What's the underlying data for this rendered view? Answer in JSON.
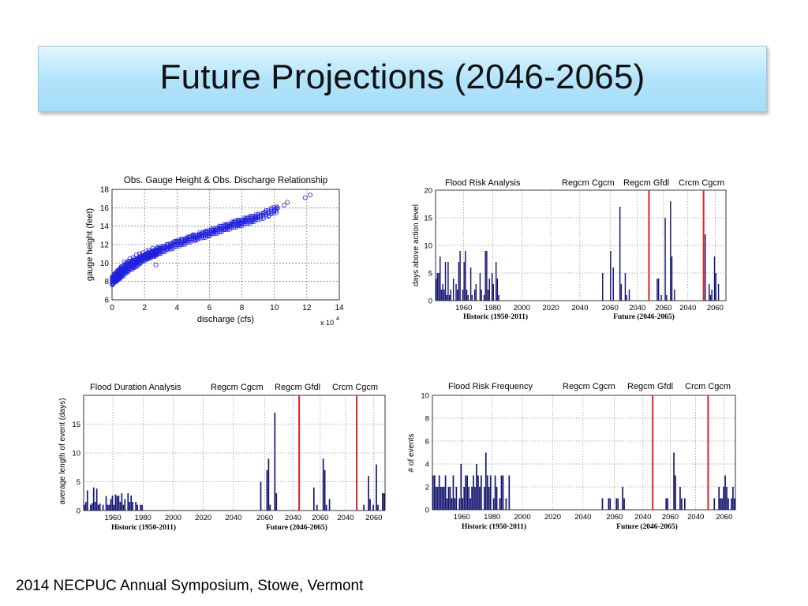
{
  "slide": {
    "title": "Future Projections (2046-2065)",
    "footer": "2014 NECPUC Annual Symposium, Stowe, Vermont"
  },
  "chart_data": [
    {
      "type": "scatter",
      "title": "Obs. Gauge Height & Obs. Discharge Relationship",
      "xlabel": "discharge (cfs)",
      "ylabel": "gauge height (feet)",
      "x_multiplier": "x 10",
      "x_multiplier_exp": "4",
      "xlim": [
        0,
        14
      ],
      "ylim": [
        6,
        18
      ],
      "xticks": [
        "0",
        "2",
        "4",
        "6",
        "8",
        "10",
        "12",
        "14"
      ],
      "yticks": [
        "6",
        "8",
        "10",
        "12",
        "14",
        "16",
        "18"
      ],
      "grid": true,
      "marker_color": "#1f1fe0",
      "points": [
        [
          0.05,
          7.7
        ],
        [
          0.1,
          8.1
        ],
        [
          0.15,
          8.4
        ],
        [
          0.2,
          8.0
        ],
        [
          0.25,
          8.6
        ],
        [
          0.3,
          8.9
        ],
        [
          0.35,
          8.3
        ],
        [
          0.4,
          9.0
        ],
        [
          0.5,
          9.3
        ],
        [
          0.55,
          8.7
        ],
        [
          0.6,
          9.6
        ],
        [
          0.7,
          9.4
        ],
        [
          0.75,
          10.1
        ],
        [
          0.8,
          9.0
        ],
        [
          0.9,
          9.8
        ],
        [
          1.0,
          10.2
        ],
        [
          1.05,
          9.3
        ],
        [
          1.1,
          10.5
        ],
        [
          1.2,
          10.0
        ],
        [
          1.3,
          10.6
        ],
        [
          1.4,
          10.3
        ],
        [
          1.5,
          10.9
        ],
        [
          1.5,
          9.6
        ],
        [
          1.6,
          10.5
        ],
        [
          1.7,
          11.0
        ],
        [
          1.8,
          10.6
        ],
        [
          1.9,
          11.1
        ],
        [
          2.0,
          10.9
        ],
        [
          2.1,
          11.3
        ],
        [
          2.2,
          11.0
        ],
        [
          2.3,
          11.4
        ],
        [
          2.4,
          11.2
        ],
        [
          2.5,
          11.6
        ],
        [
          2.6,
          11.3
        ],
        [
          2.7,
          9.8
        ],
        [
          2.8,
          11.7
        ],
        [
          2.9,
          11.5
        ],
        [
          3.0,
          11.8
        ],
        [
          3.2,
          11.7
        ],
        [
          3.4,
          12.0
        ],
        [
          3.6,
          12.1
        ],
        [
          3.8,
          12.3
        ],
        [
          4.0,
          12.3
        ],
        [
          4.3,
          12.6
        ],
        [
          4.6,
          12.7
        ],
        [
          5.0,
          12.9
        ],
        [
          5.4,
          13.1
        ],
        [
          5.8,
          13.4
        ],
        [
          6.2,
          13.6
        ],
        [
          6.6,
          13.8
        ],
        [
          7.0,
          14.1
        ],
        [
          7.4,
          14.3
        ],
        [
          7.8,
          14.6
        ],
        [
          8.2,
          14.8
        ],
        [
          8.6,
          15.1
        ],
        [
          9.0,
          15.3
        ],
        [
          9.4,
          15.5
        ],
        [
          9.8,
          15.8
        ],
        [
          10.2,
          16.0
        ],
        [
          10.6,
          16.3
        ],
        [
          10.8,
          16.6
        ],
        [
          11.9,
          17.1
        ],
        [
          12.2,
          17.4
        ]
      ],
      "band": {
        "x": [
          0.0,
          0.3,
          0.6,
          1,
          1.5,
          2,
          2.5,
          3,
          4,
          5,
          6,
          7,
          8,
          9,
          10.3
        ],
        "y_low": [
          7.6,
          8.0,
          8.4,
          9.0,
          9.6,
          10.2,
          10.6,
          11.0,
          11.7,
          12.3,
          12.9,
          13.5,
          14.0,
          14.6,
          15.5
        ],
        "y_high": [
          8.6,
          9.2,
          9.7,
          10.2,
          10.6,
          11.0,
          11.4,
          11.8,
          12.5,
          13.1,
          13.7,
          14.3,
          14.9,
          15.4,
          16.4
        ]
      }
    },
    {
      "type": "bar",
      "title": "Flood Risk Analysis",
      "ylabel": "days above action level",
      "ylim": [
        0,
        20
      ],
      "yticks": [
        "0",
        "5",
        "10",
        "15",
        "20"
      ],
      "model_labels": [
        "Regcm Cgcm",
        "Regcm Gfdl",
        "Crcm Cgcm"
      ],
      "xticks": [
        "1960",
        "1980",
        "2000",
        "2020",
        "2040",
        "2060",
        "2040",
        "2060",
        "2040",
        "2060"
      ],
      "group_labels": [
        "Historic (1950-2011)",
        "Future (2046-2065)"
      ],
      "divider_color": "#e02020",
      "bar_color": "#131570",
      "values": [
        4,
        5,
        5,
        8,
        2,
        3,
        2,
        7,
        1,
        7,
        1,
        2,
        0,
        4,
        0,
        3,
        2,
        7,
        9,
        0,
        2,
        7,
        9,
        2,
        1,
        0,
        6,
        1,
        0,
        2,
        3,
        0,
        0,
        5,
        2,
        0,
        1,
        9,
        9,
        2,
        4,
        0,
        5,
        3,
        0,
        7,
        4,
        1,
        0,
        0,
        0,
        0,
        0,
        0,
        0,
        0,
        0,
        0,
        0,
        0,
        0,
        0,
        0,
        0,
        0,
        0,
        0,
        0,
        0,
        0,
        0,
        0,
        0,
        0,
        0,
        0,
        0,
        0,
        0,
        0,
        0,
        0,
        0,
        0,
        0,
        0,
        0,
        0,
        0,
        0,
        0,
        0,
        0,
        0,
        0,
        0,
        0,
        0,
        0,
        0,
        0,
        0,
        0,
        0,
        0,
        0,
        0,
        0,
        0,
        0,
        0,
        0,
        0,
        0,
        0,
        0,
        0,
        0,
        0,
        0,
        0,
        0,
        0,
        0,
        0,
        5,
        0,
        0,
        0,
        0,
        0,
        9,
        0,
        6,
        0,
        0,
        0,
        0,
        17,
        3,
        0,
        0,
        5,
        1,
        0,
        2,
        0,
        0,
        0,
        0,
        0,
        0,
        0,
        0,
        0,
        0,
        0,
        0,
        0,
        0,
        0,
        0,
        0,
        0,
        0,
        0,
        4,
        4,
        0,
        1,
        0,
        0,
        15,
        1,
        0,
        0,
        18,
        8,
        0,
        2,
        0,
        0,
        0,
        0,
        0,
        0,
        0,
        0,
        0,
        0,
        0,
        0,
        0,
        0,
        0,
        0,
        0,
        0,
        0,
        0,
        0,
        0,
        12,
        0,
        0,
        3,
        1,
        2,
        0,
        8,
        5,
        0,
        3,
        0,
        0,
        0,
        0,
        0
      ]
    },
    {
      "type": "bar",
      "title": "Flood Duration Analysis",
      "ylabel": "average length of event (days)",
      "ylim": [
        0,
        20
      ],
      "yticks": [
        "0",
        "5",
        "10",
        "15"
      ],
      "model_labels": [
        "Regcm Cgcm",
        "Regcm Gfdl",
        "Crcm Cgcm"
      ],
      "xticks": [
        "1960",
        "1980",
        "2000",
        "2020",
        "2040",
        "2060",
        "2040",
        "2060",
        "2040",
        "2060"
      ],
      "group_labels": [
        "Historic (1950-2011)",
        "Future (2046-2065)"
      ],
      "divider_color": "#e02020",
      "bar_color": "#131570",
      "values": [
        1,
        1.5,
        3.5,
        0,
        1,
        1.3,
        4,
        1.5,
        3.8,
        1,
        1.2,
        0,
        1,
        0,
        2.5,
        1,
        1,
        2,
        2.6,
        1,
        2.8,
        2.5,
        2.6,
        1.5,
        3,
        1,
        2,
        0,
        3,
        1.5,
        2.6,
        1.5,
        0,
        1.5,
        1,
        0,
        1,
        1,
        0,
        0,
        0,
        0,
        0,
        0,
        0,
        0,
        0,
        0,
        0,
        0,
        0,
        0,
        0,
        0,
        0,
        0,
        0,
        0,
        0,
        0,
        0,
        0,
        0,
        0,
        0,
        0,
        0,
        0,
        0,
        0,
        0,
        0,
        0,
        0,
        0,
        0,
        0,
        0,
        0,
        0,
        0,
        0,
        0,
        0,
        0,
        0,
        0,
        0,
        0,
        0,
        0,
        0,
        0,
        0,
        0,
        0,
        0,
        0,
        0,
        0,
        0,
        0,
        0,
        0,
        0,
        0,
        0,
        0,
        0,
        0,
        0,
        0,
        0,
        5,
        0,
        0,
        0,
        7,
        9,
        1,
        0,
        0,
        17,
        3,
        0,
        0,
        0,
        0,
        0,
        0,
        0,
        0,
        0,
        0,
        0,
        0,
        0,
        0,
        0,
        0,
        0,
        0,
        0,
        0,
        0,
        0,
        0,
        4,
        0,
        1,
        0,
        0,
        0,
        9,
        7,
        1,
        0,
        2,
        0,
        0,
        0,
        0,
        0,
        0,
        0,
        0,
        0,
        0,
        0,
        0,
        0,
        0,
        0,
        0,
        0,
        0,
        0,
        0,
        0,
        1,
        0,
        0,
        6,
        2,
        0,
        1,
        0,
        8,
        1,
        0,
        0,
        3,
        3
      ]
    },
    {
      "type": "bar",
      "title": "Flood Risk Frequency",
      "ylabel": "# of events",
      "ylim": [
        0,
        10
      ],
      "yticks": [
        "0",
        "2",
        "4",
        "6",
        "8",
        "10"
      ],
      "model_labels": [
        "Regcm Cgcm",
        "Regcm Gfdl",
        "Crcm Cgcm"
      ],
      "xticks": [
        "1960",
        "1980",
        "2000",
        "2020",
        "2040",
        "2060",
        "2040",
        "2060",
        "2040",
        "2060"
      ],
      "group_labels": [
        "Historic (1950-2011)",
        "Future (2046-2065)"
      ],
      "divider_color": "#e02020",
      "bar_color": "#131570",
      "values": [
        3,
        3,
        2,
        2,
        3,
        2,
        2,
        2,
        3,
        1,
        2,
        2,
        1,
        3,
        1,
        2,
        0,
        1,
        4,
        1,
        2,
        3,
        3,
        2,
        1,
        2,
        3,
        2,
        4,
        3,
        2,
        3,
        0,
        2,
        5,
        3,
        2,
        3,
        0,
        1,
        3,
        2,
        0,
        1,
        3,
        3,
        0,
        1,
        0,
        3,
        0,
        0,
        0,
        0,
        0,
        0,
        0,
        0,
        0,
        0,
        0,
        0,
        0,
        0,
        0,
        0,
        0,
        0,
        0,
        0,
        0,
        0,
        0,
        0,
        0,
        0,
        0,
        0,
        0,
        0,
        0,
        0,
        0,
        0,
        0,
        0,
        0,
        0,
        0,
        0,
        0,
        0,
        0,
        0,
        0,
        0,
        0,
        0,
        0,
        0,
        0,
        0,
        0,
        0,
        0,
        0,
        0,
        0,
        0,
        1,
        0,
        0,
        0,
        1,
        1,
        0,
        0,
        0,
        1,
        1,
        0,
        0,
        2,
        1,
        0,
        0,
        0,
        0,
        0,
        0,
        0,
        0,
        0,
        0,
        0,
        0,
        0,
        0,
        0,
        0,
        0,
        0,
        0,
        0,
        0,
        0,
        0,
        0,
        0,
        0,
        1,
        1,
        0,
        0,
        0,
        5,
        3,
        0,
        0,
        2,
        1,
        0,
        1,
        0,
        0,
        0,
        0,
        0,
        0,
        0,
        0,
        0,
        0,
        0,
        0,
        0,
        0,
        0,
        0,
        0,
        0,
        1,
        0,
        0,
        2,
        1,
        1,
        2,
        3,
        2,
        1,
        0,
        1,
        2,
        1
      ]
    }
  ]
}
